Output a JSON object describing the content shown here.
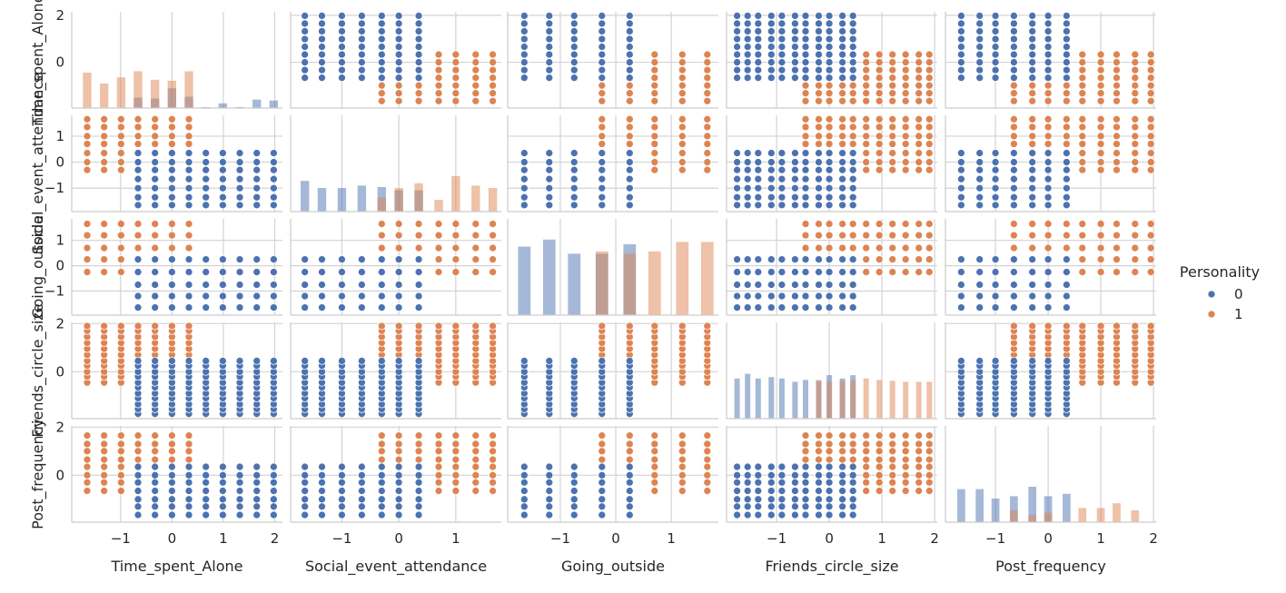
{
  "chart_data": {
    "type": "scatter",
    "kind": "pairplot",
    "variables": [
      "Time_spent_Alone",
      "Social_event_attendance",
      "Going_outside",
      "Friends_circle_size",
      "Post_frequency"
    ],
    "hue": "Personality",
    "legend": {
      "title": "Personality",
      "placement": "right",
      "entries": [
        {
          "label": "0",
          "color": "#4c72b0"
        },
        {
          "label": "1",
          "color": "#dd8452"
        }
      ]
    },
    "grid": true,
    "axes": {
      "Time_spent_Alone": {
        "range": [
          -1.95,
          2.15
        ],
        "xticks": [
          -1,
          0,
          1,
          2
        ],
        "xtick_labels": [
          "−1",
          "0",
          "1",
          "2"
        ],
        "yticks": [
          0,
          2
        ],
        "ytick_labels": [
          "0",
          "2"
        ]
      },
      "Social_event_attendance": {
        "range": [
          -1.9,
          1.8
        ],
        "xticks": [
          -1,
          0,
          1
        ],
        "xtick_labels": [
          "−1",
          "0",
          "1"
        ],
        "yticks": [
          -1,
          0,
          1
        ],
        "ytick_labels": [
          "−1",
          "0",
          "1"
        ]
      },
      "Going_outside": {
        "range": [
          -1.95,
          1.85
        ],
        "xticks": [
          -1,
          0,
          1
        ],
        "xtick_labels": [
          "−1",
          "0",
          "1"
        ],
        "yticks": [
          -1,
          0,
          1
        ],
        "ytick_labels": [
          "−1",
          "0",
          "1"
        ]
      },
      "Friends_circle_size": {
        "range": [
          -1.95,
          2.05
        ],
        "xticks": [
          -1,
          0,
          1,
          2
        ],
        "xtick_labels": [
          "−1",
          "0",
          "1",
          "2"
        ],
        "yticks": [
          0,
          2
        ],
        "ytick_labels": [
          "0",
          "2"
        ]
      },
      "Post_frequency": {
        "range": [
          -1.95,
          2.05
        ],
        "xticks": [
          -1,
          0,
          1,
          2
        ],
        "xtick_labels": [
          "−1",
          "0",
          "1",
          "2"
        ],
        "yticks": [
          0,
          2
        ],
        "ytick_labels": [
          "0",
          "2"
        ]
      }
    },
    "levels": {
      "Time_spent_Alone": [
        -1.65,
        -1.32,
        -0.99,
        -0.66,
        -0.33,
        0.0,
        0.33,
        0.66,
        0.99,
        1.32,
        1.65,
        1.98
      ],
      "Social_event_attendance": [
        -1.65,
        -1.35,
        -1.0,
        -0.65,
        -0.3,
        0.0,
        0.35,
        0.7,
        1.0,
        1.35,
        1.65
      ],
      "Going_outside": [
        -1.65,
        -1.2,
        -0.75,
        -0.25,
        0.25,
        0.7,
        1.2,
        1.65
      ],
      "Friends_circle_size": [
        -1.75,
        -1.55,
        -1.35,
        -1.1,
        -0.9,
        -0.65,
        -0.45,
        -0.2,
        0.0,
        0.25,
        0.45,
        0.7,
        0.95,
        1.2,
        1.45,
        1.7,
        1.9
      ],
      "Post_frequency": [
        -1.65,
        -1.3,
        -1.0,
        -0.65,
        -0.3,
        0.0,
        0.35,
        0.65,
        1.0,
        1.3,
        1.65,
        1.95
      ]
    },
    "class_range": {
      "0": {
        "Time_spent_Alone": [
          -0.7,
          2.1
        ],
        "Social_event_attendance": [
          -1.9,
          0.45
        ],
        "Going_outside": [
          -1.9,
          0.3
        ],
        "Friends_circle_size": [
          -1.9,
          0.5
        ],
        "Post_frequency": [
          -1.9,
          0.55
        ]
      },
      "1": {
        "Time_spent_Alone": [
          -1.9,
          0.35
        ],
        "Social_event_attendance": [
          -0.35,
          1.8
        ],
        "Going_outside": [
          -0.3,
          1.8
        ],
        "Friends_circle_size": [
          -0.5,
          2.0
        ],
        "Post_frequency": [
          -0.65,
          2.0
        ]
      }
    },
    "histograms": {
      "Time_spent_Alone": {
        "bins": [
          -1.65,
          -1.32,
          -0.99,
          -0.66,
          -0.33,
          0.0,
          0.33,
          0.66,
          0.99,
          1.32,
          1.65,
          1.98
        ],
        "class_0": [
          0,
          0,
          0,
          0.22,
          0.2,
          0.42,
          0.24,
          0.02,
          0.1,
          0.02,
          0.18,
          0.16
        ],
        "class_1": [
          0.75,
          0.52,
          0.65,
          0.78,
          0.6,
          0.58,
          0.78,
          0,
          0,
          0,
          0,
          0
        ]
      },
      "Social_event_attendance": {
        "bins": [
          -1.65,
          -1.35,
          -1.0,
          -0.65,
          -0.3,
          0.0,
          0.35,
          0.7,
          1.0,
          1.35,
          1.65
        ],
        "class_0": [
          0.65,
          0.5,
          0.5,
          0.55,
          0.52,
          0.45,
          0.45,
          0,
          0,
          0,
          0
        ],
        "class_1": [
          0,
          0,
          0,
          0,
          0.3,
          0.5,
          0.6,
          0.25,
          0.75,
          0.55,
          0.5
        ]
      },
      "Going_outside": {
        "bins": [
          -1.65,
          -1.2,
          -0.75,
          -0.25,
          0.25,
          0.7,
          1.2,
          1.65
        ],
        "class_0": [
          1.45,
          1.6,
          1.3,
          1.3,
          1.5,
          0,
          0,
          0
        ],
        "class_1": [
          0,
          0,
          0,
          1.35,
          1.3,
          1.35,
          1.55,
          1.55
        ]
      },
      "Friends_circle_size": {
        "bins": [
          -1.75,
          -1.55,
          -1.35,
          -1.1,
          -0.9,
          -0.65,
          -0.45,
          -0.2,
          0.0,
          0.25,
          0.45,
          0.7,
          0.95,
          1.2,
          1.45,
          1.7,
          1.9
        ],
        "class_0": [
          0.85,
          0.95,
          0.85,
          0.88,
          0.85,
          0.78,
          0.82,
          0.8,
          0.92,
          0.85,
          0.92,
          0,
          0,
          0,
          0,
          0,
          0
        ],
        "class_1": [
          0,
          0,
          0,
          0,
          0,
          0,
          0,
          0.82,
          0.78,
          0.8,
          0.82,
          0.85,
          0.82,
          0.8,
          0.78,
          0.78,
          0.78
        ]
      },
      "Post_frequency": {
        "bins": [
          -1.65,
          -1.3,
          -1.0,
          -0.65,
          -0.3,
          0.0,
          0.35,
          0.65,
          1.0,
          1.3,
          1.65,
          1.95
        ],
        "class_0": [
          0.7,
          0.7,
          0.5,
          0.55,
          0.75,
          0.55,
          0.6,
          0,
          0,
          0,
          0,
          0
        ],
        "class_1": [
          0,
          0,
          0,
          0.25,
          0.15,
          0.2,
          0,
          0.3,
          0.3,
          0.4,
          0.25,
          0
        ]
      }
    }
  }
}
